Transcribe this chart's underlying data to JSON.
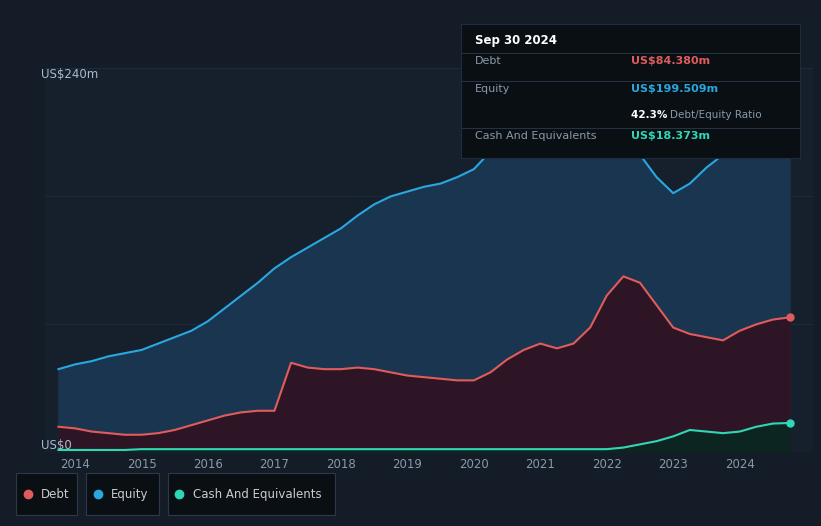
{
  "background_color": "#131c27",
  "plot_bg_color": "#131c27",
  "chart_area_color": "#16202d",
  "grid_color": "#1e2d3e",
  "title_label": "US$240m",
  "zero_label": "US$0",
  "x_ticks": [
    2014,
    2015,
    2016,
    2017,
    2018,
    2019,
    2020,
    2021,
    2022,
    2023,
    2024
  ],
  "ylim": [
    0,
    240
  ],
  "xlim": [
    2013.55,
    2025.1
  ],
  "equity": {
    "years": [
      2013.75,
      2014.0,
      2014.25,
      2014.5,
      2014.75,
      2015.0,
      2015.25,
      2015.5,
      2015.75,
      2016.0,
      2016.25,
      2016.5,
      2016.75,
      2017.0,
      2017.25,
      2017.5,
      2017.75,
      2018.0,
      2018.25,
      2018.5,
      2018.75,
      2019.0,
      2019.25,
      2019.5,
      2019.75,
      2020.0,
      2020.25,
      2020.5,
      2020.75,
      2021.0,
      2021.25,
      2021.5,
      2021.75,
      2022.0,
      2022.25,
      2022.5,
      2022.75,
      2023.0,
      2023.25,
      2023.5,
      2023.75,
      2024.0,
      2024.25,
      2024.5,
      2024.75
    ],
    "values": [
      52,
      55,
      57,
      60,
      62,
      64,
      68,
      72,
      76,
      82,
      90,
      98,
      106,
      115,
      122,
      128,
      134,
      140,
      148,
      155,
      160,
      163,
      166,
      168,
      172,
      177,
      188,
      200,
      216,
      226,
      230,
      228,
      222,
      215,
      200,
      186,
      172,
      162,
      168,
      178,
      186,
      192,
      195,
      198,
      199.5
    ],
    "color": "#29a8e0",
    "fill_color": "#1a3550",
    "label": "Equity"
  },
  "debt": {
    "years": [
      2013.75,
      2014.0,
      2014.25,
      2014.5,
      2014.75,
      2015.0,
      2015.25,
      2015.5,
      2015.75,
      2016.0,
      2016.25,
      2016.5,
      2016.75,
      2017.0,
      2017.25,
      2017.5,
      2017.75,
      2018.0,
      2018.25,
      2018.5,
      2018.75,
      2019.0,
      2019.25,
      2019.5,
      2019.75,
      2020.0,
      2020.25,
      2020.5,
      2020.75,
      2021.0,
      2021.25,
      2021.5,
      2021.75,
      2022.0,
      2022.25,
      2022.5,
      2022.75,
      2023.0,
      2023.25,
      2023.5,
      2023.75,
      2024.0,
      2024.25,
      2024.5,
      2024.75
    ],
    "values": [
      16,
      15,
      13,
      12,
      11,
      11,
      12,
      14,
      17,
      20,
      23,
      25,
      26,
      26,
      56,
      53,
      52,
      52,
      53,
      52,
      50,
      48,
      47,
      46,
      45,
      45,
      50,
      58,
      64,
      68,
      65,
      68,
      78,
      98,
      110,
      106,
      92,
      78,
      74,
      72,
      70,
      76,
      80,
      83,
      84.38
    ],
    "color": "#e05c5c",
    "fill_color": "#2e1525",
    "label": "Debt"
  },
  "cash": {
    "years": [
      2013.75,
      2014.0,
      2014.25,
      2014.5,
      2014.75,
      2015.0,
      2015.25,
      2015.5,
      2015.75,
      2016.0,
      2016.25,
      2016.5,
      2016.75,
      2017.0,
      2017.25,
      2017.5,
      2017.75,
      2018.0,
      2018.25,
      2018.5,
      2018.75,
      2019.0,
      2019.25,
      2019.5,
      2019.75,
      2020.0,
      2020.25,
      2020.5,
      2020.75,
      2021.0,
      2021.25,
      2021.5,
      2021.75,
      2022.0,
      2022.25,
      2022.5,
      2022.75,
      2023.0,
      2023.25,
      2023.5,
      2023.75,
      2024.0,
      2024.25,
      2024.5,
      2024.75
    ],
    "values": [
      1.5,
      1.5,
      1.5,
      1.5,
      1.5,
      2,
      2,
      2,
      2,
      2,
      2,
      2,
      2,
      2,
      2,
      2,
      2,
      2,
      2,
      2,
      2,
      2,
      2,
      2,
      2,
      2,
      2,
      2,
      2,
      2,
      2,
      2,
      2,
      2,
      3,
      5,
      7,
      10,
      14,
      13,
      12,
      13,
      16,
      18,
      18.37
    ],
    "color": "#2ed8b6",
    "fill_color": "#0d2520",
    "label": "Cash And Equivalents"
  },
  "tooltip": {
    "date": "Sep 30 2024",
    "debt_label": "Debt",
    "debt_value": "US$84.380m",
    "equity_label": "Equity",
    "equity_value": "US$199.509m",
    "ratio_value": "42.3%",
    "ratio_label": "Debt/Equity Ratio",
    "cash_label": "Cash And Equivalents",
    "cash_value": "US$18.373m",
    "bg_color": "#0a0f14",
    "border_color": "#2a3a4a",
    "date_color": "#ffffff",
    "label_color": "#8899aa",
    "debt_val_color": "#e05c5c",
    "equity_val_color": "#29a8e0",
    "ratio_num_color": "#ffffff",
    "ratio_label_color": "#8899aa",
    "cash_val_color": "#2ed8b6"
  },
  "legend": {
    "debt_color": "#e05c5c",
    "equity_color": "#29a8e0",
    "cash_color": "#2ed8b6",
    "bg_color": "#0a0f14",
    "border_color": "#2a3a4a",
    "text_color": "#cccccc"
  }
}
